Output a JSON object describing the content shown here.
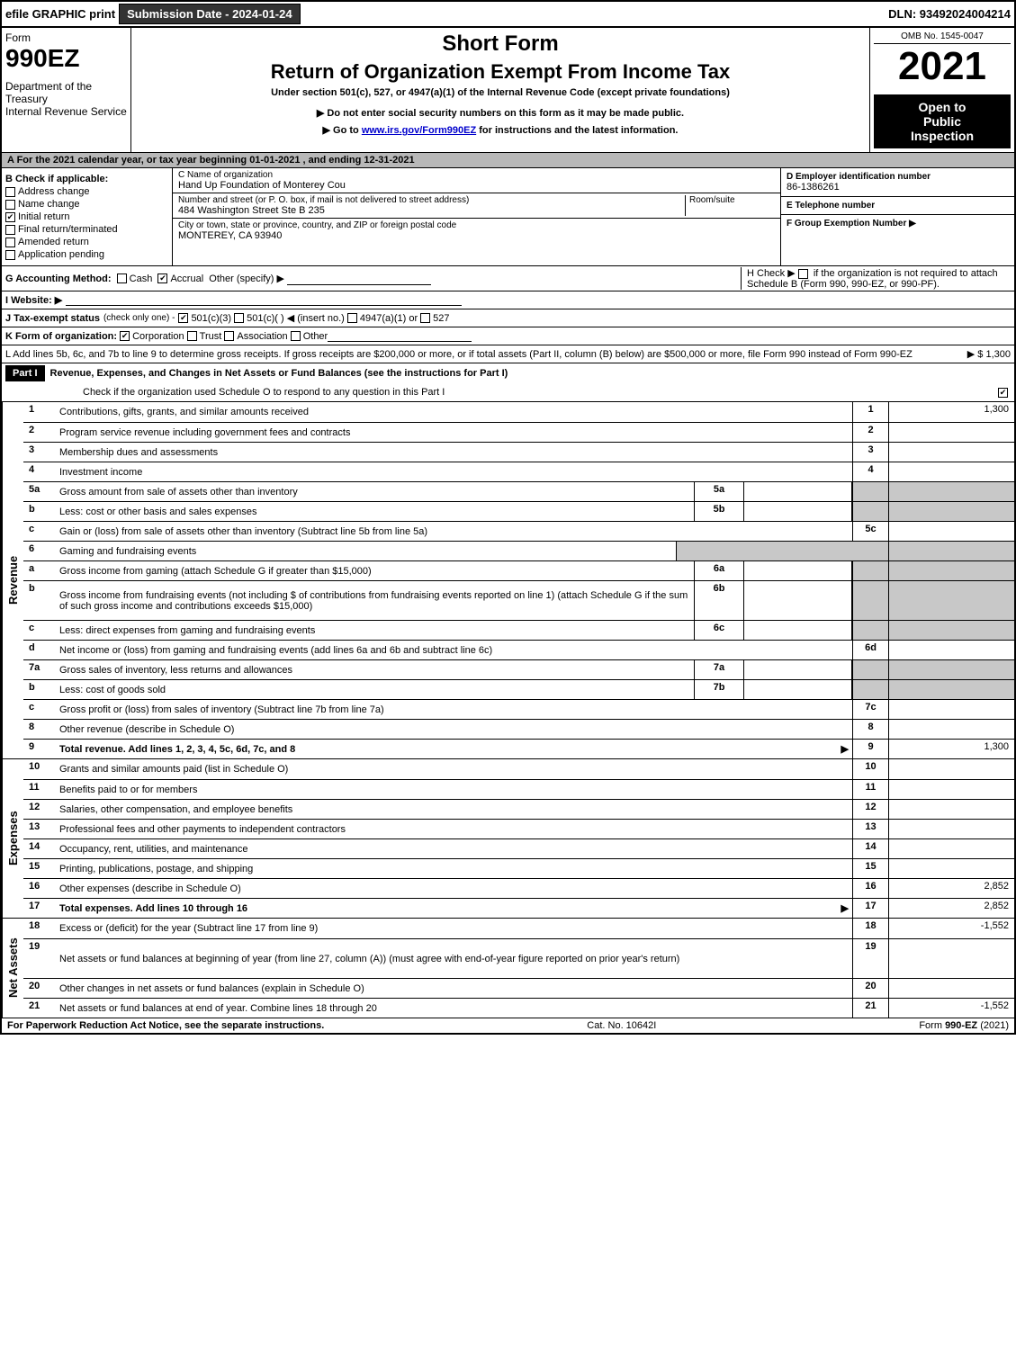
{
  "topbar": {
    "efile_label": "efile GRAPHIC print",
    "submission_label": "Submission Date - 2024-01-24",
    "dln": "DLN: 93492024004214"
  },
  "header": {
    "form_label": "Form",
    "form_number": "990EZ",
    "dept": "Department of the Treasury",
    "irs": "Internal Revenue Service",
    "title_short": "Short Form",
    "title_main": "Return of Organization Exempt From Income Tax",
    "subtitle": "Under section 501(c), 527, or 4947(a)(1) of the Internal Revenue Code (except private foundations)",
    "warn": "▶ Do not enter social security numbers on this form as it may be made public.",
    "goto_prefix": "▶ Go to ",
    "goto_link": "www.irs.gov/Form990EZ",
    "goto_suffix": " for instructions and the latest information.",
    "omb": "OMB No. 1545-0047",
    "year": "2021",
    "badge_l1": "Open to",
    "badge_l2": "Public",
    "badge_l3": "Inspection"
  },
  "section_a": "A  For the 2021 calendar year, or tax year beginning 01-01-2021 , and ending 12-31-2021",
  "box_b": {
    "title": "B  Check if applicable:",
    "items": [
      {
        "label": "Address change",
        "checked": false
      },
      {
        "label": "Name change",
        "checked": false
      },
      {
        "label": "Initial return",
        "checked": true
      },
      {
        "label": "Final return/terminated",
        "checked": false
      },
      {
        "label": "Amended return",
        "checked": false
      },
      {
        "label": "Application pending",
        "checked": false
      }
    ]
  },
  "box_c": {
    "c_label": "C Name of organization",
    "c_value": "Hand Up Foundation of Monterey Cou",
    "addr_label": "Number and street (or P. O. box, if mail is not delivered to street address)",
    "room_label": "Room/suite",
    "addr_value": "484 Washington Street Ste B 235",
    "city_label": "City or town, state or province, country, and ZIP or foreign postal code",
    "city_value": "MONTEREY, CA  93940"
  },
  "box_d": {
    "label": "D Employer identification number",
    "value": "86-1386261"
  },
  "box_e": {
    "label": "E Telephone number",
    "value": ""
  },
  "box_f": {
    "label": "F Group Exemption Number  ▶",
    "value": ""
  },
  "line_g": {
    "label": "G Accounting Method:",
    "cash": "Cash",
    "accrual": "Accrual",
    "other": "Other (specify) ▶"
  },
  "line_h": {
    "prefix": "H  Check ▶ ",
    "text": " if the organization is not required to attach Schedule B (Form 990, 990-EZ, or 990-PF)."
  },
  "line_i": "I Website: ▶",
  "line_j": {
    "label": "J Tax-exempt status",
    "suffix": "(check only one) -",
    "opt1": "501(c)(3)",
    "opt2": "501(c)(  ) ◀ (insert no.)",
    "opt3": "4947(a)(1) or",
    "opt4": "527"
  },
  "line_k": {
    "label": "K Form of organization:",
    "opts": [
      "Corporation",
      "Trust",
      "Association",
      "Other"
    ]
  },
  "line_l": {
    "text": "L Add lines 5b, 6c, and 7b to line 9 to determine gross receipts. If gross receipts are $200,000 or more, or if total assets (Part II, column (B) below) are $500,000 or more, file Form 990 instead of Form 990-EZ",
    "amount": "▶ $ 1,300"
  },
  "part1": {
    "label": "Part I",
    "title": "Revenue, Expenses, and Changes in Net Assets or Fund Balances (see the instructions for Part I)",
    "check_line": "Check if the organization used Schedule O to respond to any question in this Part I"
  },
  "vlabels": {
    "revenue": "Revenue",
    "expenses": "Expenses",
    "netassets": "Net Assets"
  },
  "rows_revenue": [
    {
      "n": "1",
      "text": "Contributions, gifts, grants, and similar amounts received",
      "ln": "1",
      "amt": "1,300"
    },
    {
      "n": "2",
      "text": "Program service revenue including government fees and contracts",
      "ln": "2",
      "amt": ""
    },
    {
      "n": "3",
      "text": "Membership dues and assessments",
      "ln": "3",
      "amt": ""
    },
    {
      "n": "4",
      "text": "Investment income",
      "ln": "4",
      "amt": ""
    },
    {
      "n": "5a",
      "text": "Gross amount from sale of assets other than inventory",
      "sub": "5a",
      "shade": true
    },
    {
      "n": "b",
      "text": "Less: cost or other basis and sales expenses",
      "sub": "5b",
      "shade": true
    },
    {
      "n": "c",
      "text": "Gain or (loss) from sale of assets other than inventory (Subtract line 5b from line 5a)",
      "ln": "5c",
      "amt": ""
    },
    {
      "n": "6",
      "text": "Gaming and fundraising events",
      "shade": true,
      "noamt": true
    },
    {
      "n": "a",
      "text": "Gross income from gaming (attach Schedule G if greater than $15,000)",
      "sub": "6a",
      "shade": true
    },
    {
      "n": "b",
      "text": "Gross income from fundraising events (not including $              of contributions from fundraising events reported on line 1) (attach Schedule G if the sum of such gross income and contributions exceeds $15,000)",
      "sub": "6b",
      "shade": true,
      "tall": true
    },
    {
      "n": "c",
      "text": "Less: direct expenses from gaming and fundraising events",
      "sub": "6c",
      "shade": true
    },
    {
      "n": "d",
      "text": "Net income or (loss) from gaming and fundraising events (add lines 6a and 6b and subtract line 6c)",
      "ln": "6d",
      "amt": ""
    },
    {
      "n": "7a",
      "text": "Gross sales of inventory, less returns and allowances",
      "sub": "7a",
      "shade": true
    },
    {
      "n": "b",
      "text": "Less: cost of goods sold",
      "sub": "7b",
      "shade": true
    },
    {
      "n": "c",
      "text": "Gross profit or (loss) from sales of inventory (Subtract line 7b from line 7a)",
      "ln": "7c",
      "amt": ""
    },
    {
      "n": "8",
      "text": "Other revenue (describe in Schedule O)",
      "ln": "8",
      "amt": ""
    },
    {
      "n": "9",
      "text": "Total revenue. Add lines 1, 2, 3, 4, 5c, 6d, 7c, and 8",
      "ln": "9",
      "amt": "1,300",
      "bold": true,
      "arrow": true
    }
  ],
  "rows_expenses": [
    {
      "n": "10",
      "text": "Grants and similar amounts paid (list in Schedule O)",
      "ln": "10",
      "amt": ""
    },
    {
      "n": "11",
      "text": "Benefits paid to or for members",
      "ln": "11",
      "amt": ""
    },
    {
      "n": "12",
      "text": "Salaries, other compensation, and employee benefits",
      "ln": "12",
      "amt": ""
    },
    {
      "n": "13",
      "text": "Professional fees and other payments to independent contractors",
      "ln": "13",
      "amt": ""
    },
    {
      "n": "14",
      "text": "Occupancy, rent, utilities, and maintenance",
      "ln": "14",
      "amt": ""
    },
    {
      "n": "15",
      "text": "Printing, publications, postage, and shipping",
      "ln": "15",
      "amt": ""
    },
    {
      "n": "16",
      "text": "Other expenses (describe in Schedule O)",
      "ln": "16",
      "amt": "2,852"
    },
    {
      "n": "17",
      "text": "Total expenses. Add lines 10 through 16",
      "ln": "17",
      "amt": "2,852",
      "bold": true,
      "arrow": true
    }
  ],
  "rows_netassets": [
    {
      "n": "18",
      "text": "Excess or (deficit) for the year (Subtract line 17 from line 9)",
      "ln": "18",
      "amt": "-1,552"
    },
    {
      "n": "19",
      "text": "Net assets or fund balances at beginning of year (from line 27, column (A)) (must agree with end-of-year figure reported on prior year's return)",
      "ln": "19",
      "amt": "",
      "tall": true
    },
    {
      "n": "20",
      "text": "Other changes in net assets or fund balances (explain in Schedule O)",
      "ln": "20",
      "amt": ""
    },
    {
      "n": "21",
      "text": "Net assets or fund balances at end of year. Combine lines 18 through 20",
      "ln": "21",
      "amt": "-1,552"
    }
  ],
  "footer": {
    "left": "For Paperwork Reduction Act Notice, see the separate instructions.",
    "mid": "Cat. No. 10642I",
    "right_prefix": "Form ",
    "right_form": "990-EZ",
    "right_suffix": " (2021)"
  },
  "colors": {
    "black": "#000000",
    "grey_header": "#b8b8b8",
    "grey_shade": "#c8c8c8",
    "btn_dark": "#333333",
    "link": "#0000cc"
  }
}
